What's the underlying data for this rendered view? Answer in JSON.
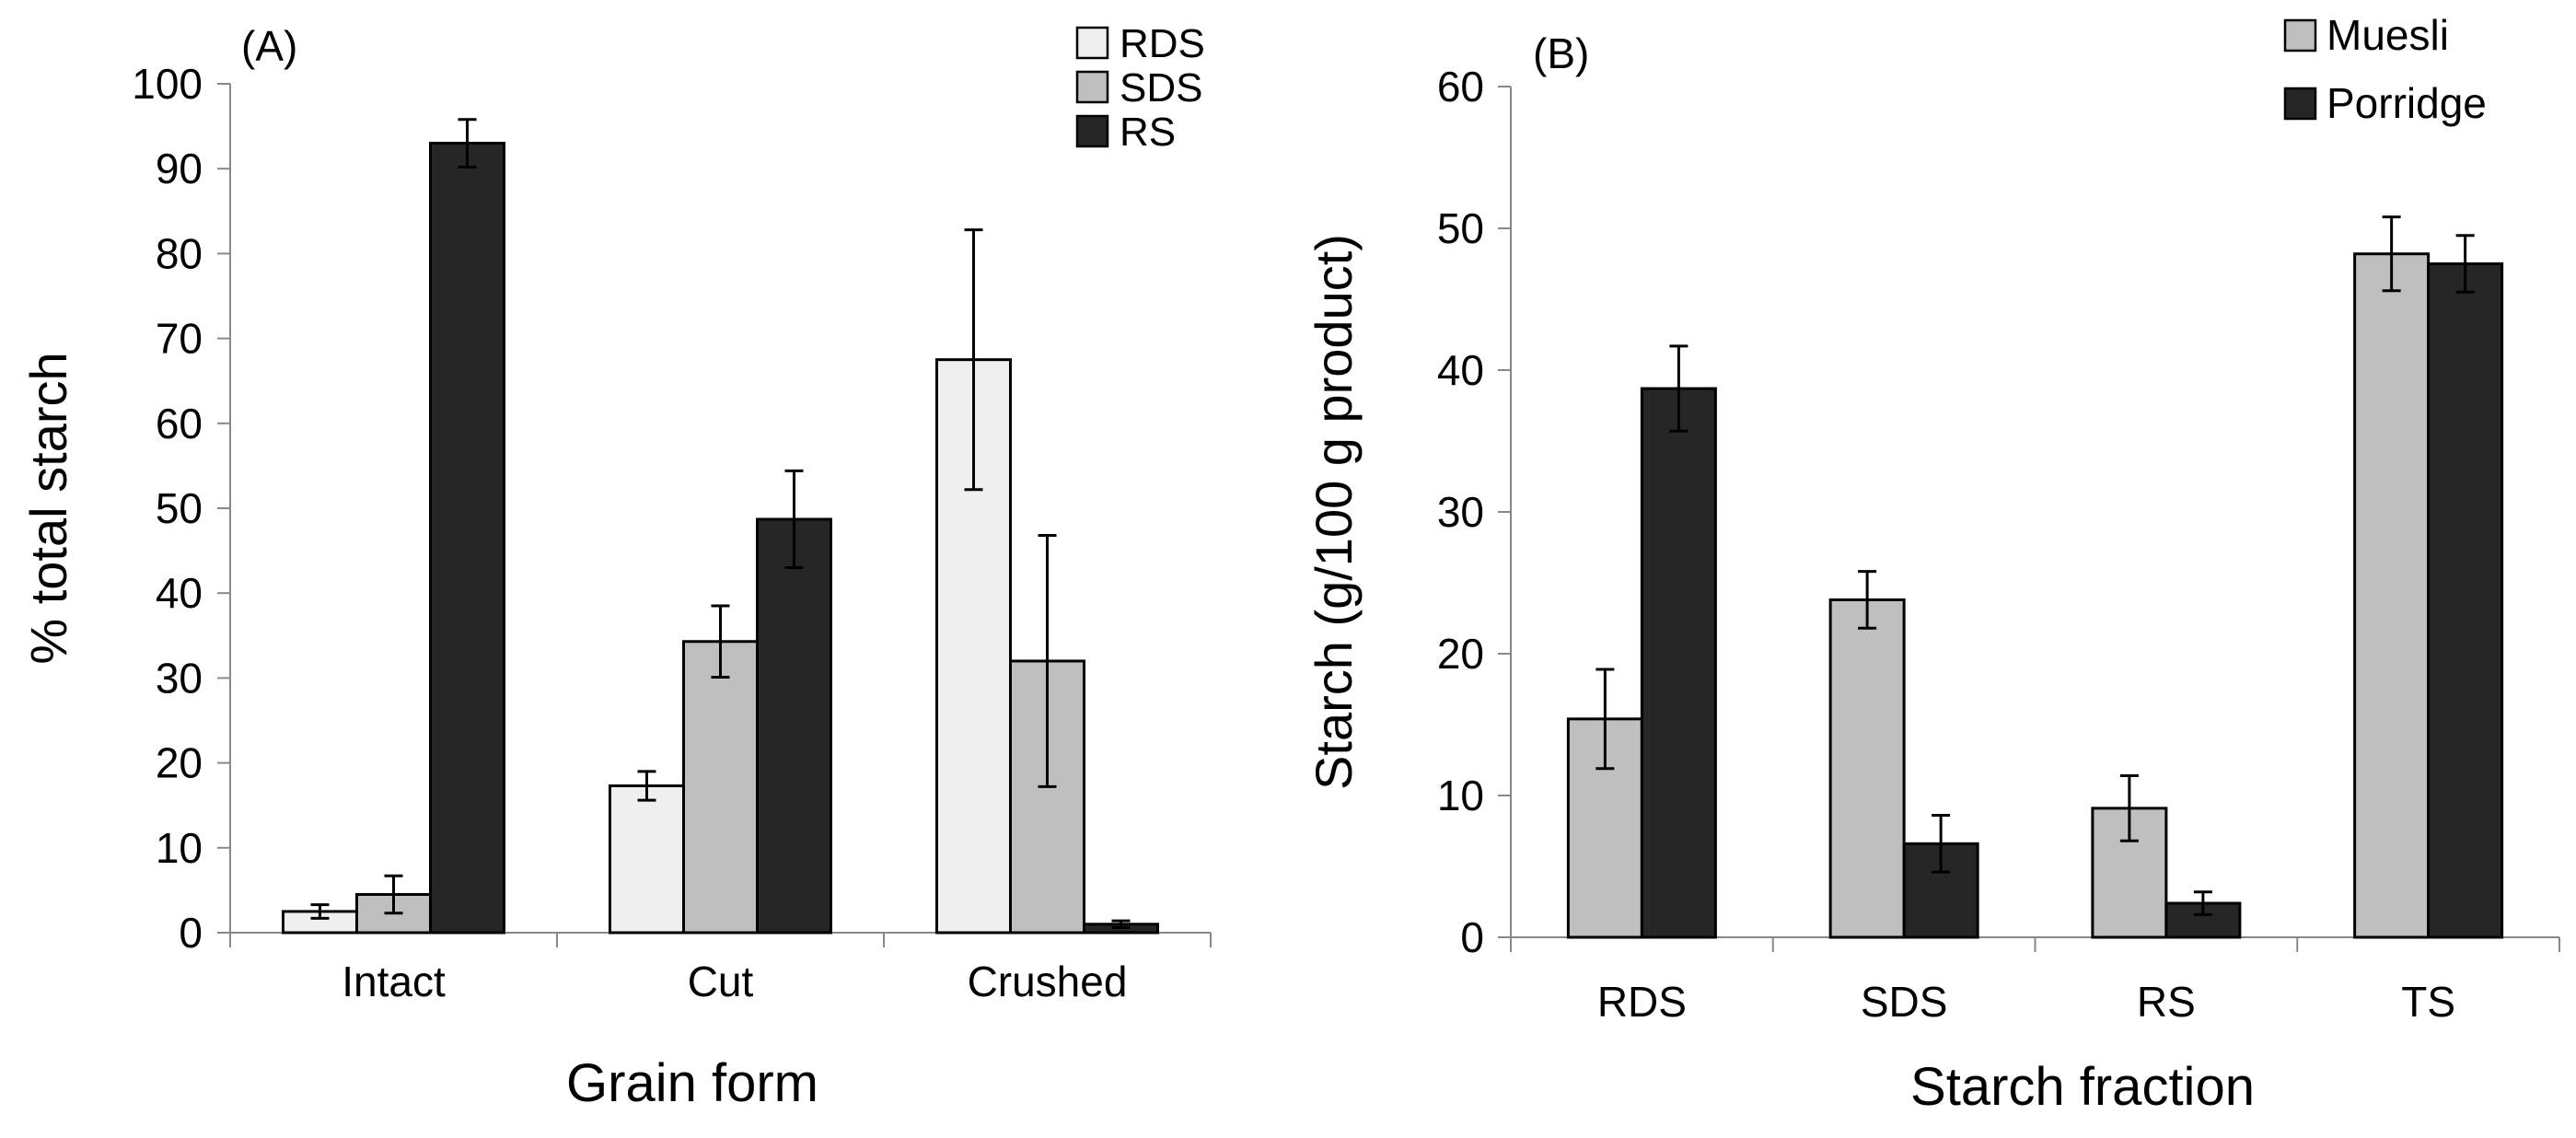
{
  "chart_data": [
    {
      "type": "bar",
      "panel_label": "(A)",
      "title": "",
      "xlabel": "Grain form",
      "ylabel": "% total starch",
      "ylim": [
        0,
        100
      ],
      "yticks": [
        "0",
        "10",
        "20",
        "30",
        "40",
        "50",
        "60",
        "70",
        "80",
        "90",
        "100"
      ],
      "categories": [
        "Intact",
        "Cut",
        "Crushed"
      ],
      "legend_position": "top-right",
      "series": [
        {
          "name": "RDS",
          "color": "#efefef",
          "values": [
            2.5,
            17.3,
            67.5
          ],
          "errors": [
            0.8,
            1.7,
            15.3
          ]
        },
        {
          "name": "SDS",
          "color": "#bfbfbf",
          "values": [
            4.5,
            34.3,
            32.0
          ],
          "errors": [
            2.2,
            4.2,
            14.8
          ]
        },
        {
          "name": "RS",
          "color": "#262626",
          "values": [
            93.0,
            48.7,
            1.0
          ],
          "errors": [
            2.8,
            5.7,
            0.4
          ]
        }
      ]
    },
    {
      "type": "bar",
      "panel_label": "(B)",
      "title": "",
      "xlabel": "Starch fraction",
      "ylabel": "Starch (g/100 g product)",
      "ylim": [
        0,
        60
      ],
      "yticks": [
        "0",
        "10",
        "20",
        "30",
        "40",
        "50",
        "60"
      ],
      "categories": [
        "RDS",
        "SDS",
        "RS",
        "TS"
      ],
      "legend_position": "top-right",
      "series": [
        {
          "name": "Muesli",
          "color": "#bfbfbf",
          "values": [
            15.4,
            23.8,
            9.1,
            48.2
          ],
          "errors": [
            3.5,
            2.0,
            2.3,
            2.6
          ]
        },
        {
          "name": "Porridge",
          "color": "#262626",
          "values": [
            38.7,
            6.6,
            2.4,
            47.5
          ],
          "errors": [
            3.0,
            2.0,
            0.8,
            2.0
          ]
        }
      ]
    }
  ]
}
